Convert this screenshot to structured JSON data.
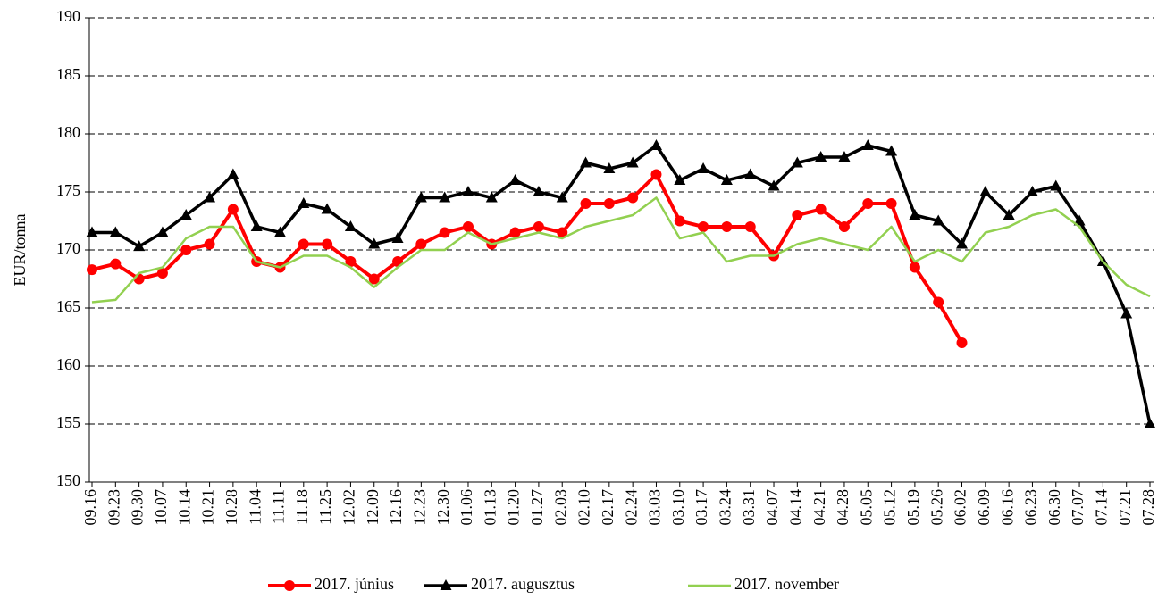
{
  "chart_data": {
    "type": "line",
    "y_label": "EUR/tonna",
    "categories": [
      "09.16",
      "09.23",
      "09.30",
      "10.07",
      "10.14",
      "10.21",
      "10.28",
      "11.04",
      "11.11",
      "11.18",
      "11.25",
      "12.02",
      "12.09",
      "12.16",
      "12.23",
      "12.30",
      "01.06",
      "01.13",
      "01.20",
      "01.27",
      "02.03",
      "02.10",
      "02.17",
      "02.24",
      "03.03",
      "03.10",
      "03.17",
      "03.24",
      "03.31",
      "04.07",
      "04.14",
      "04.21",
      "04.28",
      "05.05",
      "05.12",
      "05.19",
      "05.26",
      "06.02",
      "06.09",
      "06.16",
      "06.23",
      "06.30",
      "07.07",
      "07.14",
      "07.21",
      "07.28"
    ],
    "series": [
      {
        "name": "2017. június",
        "color": "#ff0000",
        "marker": "circle",
        "values": [
          168.3,
          168.8,
          167.5,
          168,
          170,
          170.5,
          173.5,
          169,
          168.5,
          170.5,
          170.5,
          169,
          167.5,
          169,
          170.5,
          171.5,
          172,
          170.5,
          171.5,
          172,
          171.5,
          174,
          174,
          174.5,
          176.5,
          172.5,
          172,
          172,
          172,
          169.5,
          173,
          173.5,
          172,
          174,
          174,
          168.5,
          165.5,
          162,
          null,
          null,
          null,
          null,
          null,
          null,
          null,
          null
        ]
      },
      {
        "name": "2017. augusztus",
        "color": "#000000",
        "marker": "triangle",
        "values": [
          171.5,
          171.5,
          170.3,
          171.5,
          173,
          174.5,
          176.5,
          172,
          171.5,
          174,
          173.5,
          172,
          170.5,
          171,
          174.5,
          174.5,
          175,
          174.5,
          176,
          175,
          174.5,
          177.5,
          177,
          177.5,
          179,
          176,
          177,
          176,
          176.5,
          175.5,
          177.5,
          178,
          178,
          179,
          178.5,
          173,
          172.5,
          170.5,
          175,
          173,
          175,
          175.5,
          172.5,
          169,
          164.5,
          155
        ]
      },
      {
        "name": "2017. november",
        "color": "#92d050",
        "marker": "none",
        "values": [
          165.5,
          165.7,
          168,
          168.5,
          171,
          172,
          172,
          169,
          168.5,
          169.5,
          169.5,
          168.5,
          166.8,
          168.5,
          170,
          170,
          171.5,
          170.5,
          171,
          171.5,
          171,
          172,
          172.5,
          173,
          174.5,
          171,
          171.5,
          169,
          169.5,
          169.5,
          170.5,
          171,
          170.5,
          170,
          172,
          169,
          170,
          169,
          171.5,
          172,
          173,
          173.5,
          172,
          169,
          167,
          166
        ]
      }
    ],
    "ylim": [
      150,
      190
    ],
    "yticks": [
      150,
      155,
      160,
      165,
      170,
      175,
      180,
      185,
      190
    ],
    "grid": true,
    "legend": "bottom"
  }
}
